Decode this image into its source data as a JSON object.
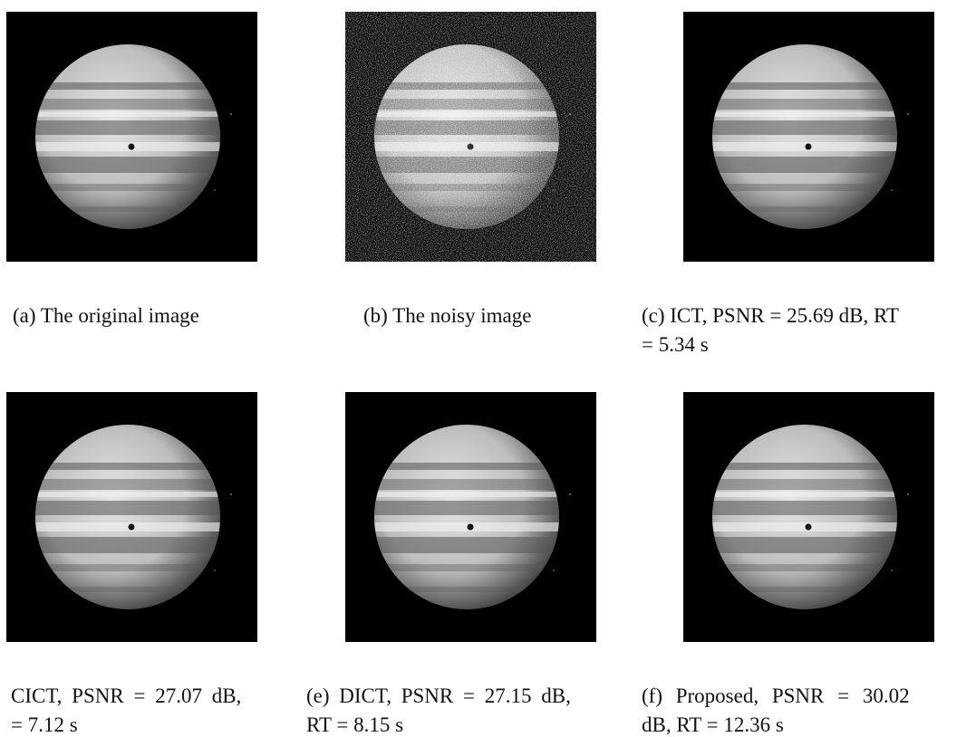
{
  "figure": {
    "panels": [
      {
        "caption": [
          "(a) The original image"
        ]
      },
      {
        "caption": [
          "(b) The noisy image"
        ]
      },
      {
        "caption": [
          "(c) ICT, PSNR = 25.69 dB, RT",
          "= 5.34 s"
        ]
      },
      {
        "caption": [
          "CICT, PSNR = 27.07 dB,",
          "= 7.12 s"
        ]
      },
      {
        "caption": [
          "(e) DICT, PSNR = 27.15 dB,",
          "RT = 8.15 s"
        ]
      },
      {
        "caption": [
          "(f) Proposed, PSNR = 30.02",
          "dB, RT = 12.36 s"
        ]
      }
    ]
  }
}
